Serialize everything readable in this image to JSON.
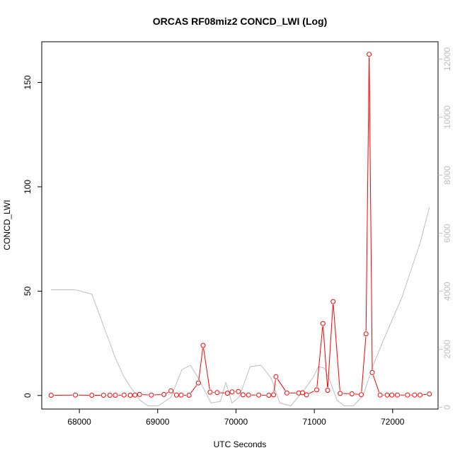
{
  "chart_data": {
    "type": "line",
    "title": "ORCAS RF08miz2 CONCD_LWI (Log)",
    "xlabel": "UTC Seconds",
    "ylabel": "CONCD_LWI",
    "xlim": [
      67520,
      72580
    ],
    "ylim": [
      -6.5,
      169.5
    ],
    "y2lim": [
      -60,
      12600
    ],
    "x_ticks": [
      68000,
      69000,
      70000,
      71000,
      72000
    ],
    "y_ticks": [
      0,
      50,
      100,
      150
    ],
    "y2_ticks": [
      0,
      2000,
      4000,
      6000,
      8000,
      10000,
      12000
    ],
    "grid": false,
    "legend": "none",
    "colors": {
      "primary": "#ff0000",
      "secondary": "#bebebe",
      "axis": "#000000"
    },
    "series": [
      {
        "axis": "left",
        "style": "line+points",
        "points": [
          [
            67640,
            0.1
          ],
          [
            67950,
            0.2
          ],
          [
            68160,
            0.1
          ],
          [
            68310,
            0.1
          ],
          [
            68390,
            0.1
          ],
          [
            68460,
            0.1
          ],
          [
            68570,
            0.2
          ],
          [
            68650,
            0.1
          ],
          [
            68710,
            0.2
          ],
          [
            68770,
            0.5
          ],
          [
            68920,
            0.2
          ],
          [
            69080,
            0.5
          ],
          [
            69170,
            2.2
          ],
          [
            69240,
            0.2
          ],
          [
            69300,
            0.2
          ],
          [
            69400,
            0.1
          ],
          [
            69520,
            6.0
          ],
          [
            69580,
            24.0
          ],
          [
            69670,
            1.6
          ],
          [
            69760,
            1.4
          ],
          [
            69890,
            1.1
          ],
          [
            69950,
            1.7
          ],
          [
            70030,
            1.9
          ],
          [
            70090,
            0.3
          ],
          [
            70160,
            0.2
          ],
          [
            70290,
            0.2
          ],
          [
            70420,
            0.1
          ],
          [
            70480,
            0.3
          ],
          [
            70510,
            9.0
          ],
          [
            70650,
            1.2
          ],
          [
            70800,
            1.2
          ],
          [
            70850,
            1.3
          ],
          [
            70900,
            0.3
          ],
          [
            71030,
            2.7
          ],
          [
            71110,
            34.5
          ],
          [
            71170,
            2.5
          ],
          [
            71240,
            45.0
          ],
          [
            71330,
            1.0
          ],
          [
            71480,
            0.8
          ],
          [
            71600,
            0.4
          ],
          [
            71660,
            29.5
          ],
          [
            71700,
            163.5
          ],
          [
            71740,
            11.0
          ],
          [
            71840,
            0.2
          ],
          [
            71930,
            0.2
          ],
          [
            71990,
            0.2
          ],
          [
            72060,
            0.2
          ],
          [
            72190,
            0.2
          ],
          [
            72280,
            0.2
          ],
          [
            72350,
            0.2
          ],
          [
            72470,
            0.7
          ]
        ]
      },
      {
        "axis": "right",
        "style": "line",
        "points": [
          [
            67640,
            4050
          ],
          [
            67950,
            4050
          ],
          [
            68160,
            3900
          ],
          [
            68310,
            2800
          ],
          [
            68460,
            1700
          ],
          [
            68570,
            1050
          ],
          [
            68650,
            700
          ],
          [
            68710,
            500
          ],
          [
            68770,
            250
          ],
          [
            68880,
            50
          ],
          [
            69010,
            50
          ],
          [
            69170,
            350
          ],
          [
            69310,
            1300
          ],
          [
            69420,
            1450
          ],
          [
            69530,
            950
          ],
          [
            69680,
            150
          ],
          [
            69800,
            200
          ],
          [
            69870,
            850
          ],
          [
            69950,
            150
          ],
          [
            70040,
            350
          ],
          [
            70180,
            1400
          ],
          [
            70320,
            1450
          ],
          [
            70450,
            1000
          ],
          [
            70560,
            150
          ],
          [
            70700,
            50
          ],
          [
            70870,
            600
          ],
          [
            70990,
            1050
          ],
          [
            71050,
            1400
          ],
          [
            71130,
            1350
          ],
          [
            71200,
            900
          ],
          [
            71290,
            250
          ],
          [
            71380,
            50
          ],
          [
            71500,
            50
          ],
          [
            71620,
            400
          ],
          [
            71760,
            1500
          ],
          [
            71880,
            2300
          ],
          [
            72000,
            3050
          ],
          [
            72120,
            3800
          ],
          [
            72230,
            4700
          ],
          [
            72350,
            5650
          ],
          [
            72470,
            6900
          ]
        ]
      }
    ]
  }
}
